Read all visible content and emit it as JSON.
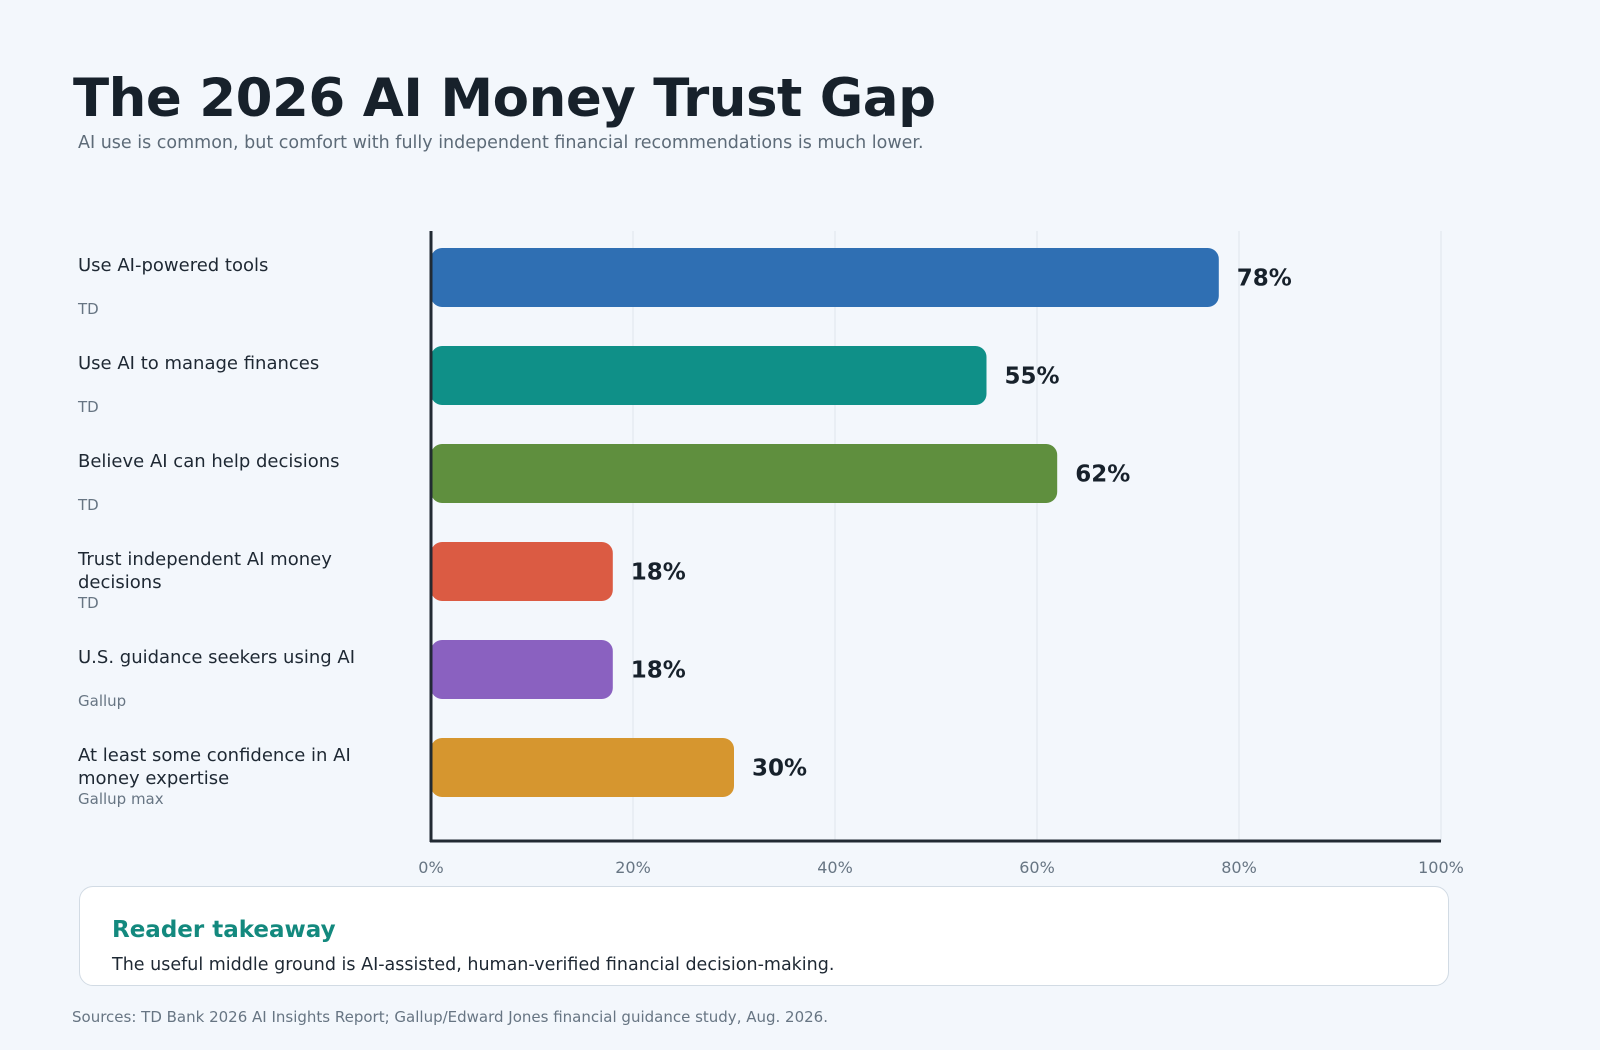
{
  "title": "The 2026 AI Money Trust Gap",
  "subtitle": "AI use is common, but comfort with fully independent financial recommendations is much lower.",
  "chart_data": {
    "type": "bar",
    "orientation": "horizontal",
    "categories": [
      "Use AI-powered tools",
      "Use AI to manage finances",
      "Believe AI can help decisions",
      "Trust independent AI money decisions",
      "U.S. guidance seekers using AI",
      "At least some confidence in AI money expertise"
    ],
    "sources": [
      "TD",
      "TD",
      "TD",
      "TD",
      "Gallup",
      "Gallup max"
    ],
    "values": [
      78,
      55,
      62,
      18,
      18,
      30
    ],
    "value_labels": [
      "78%",
      "55%",
      "62%",
      "18%",
      "18%",
      "30%"
    ],
    "colors": [
      "#2f6fb3",
      "#0f9088",
      "#5f8f3e",
      "#db5b43",
      "#8a61c0",
      "#d6962f"
    ],
    "xlim": [
      0,
      100
    ],
    "xticks": [
      0,
      20,
      40,
      60,
      80,
      100
    ],
    "xtick_labels": [
      "0%",
      "20%",
      "40%",
      "60%",
      "80%",
      "100%"
    ],
    "grid": true
  },
  "takeaway": {
    "title": "Reader takeaway",
    "text": "The useful middle ground is AI-assisted, human-verified financial decision-making."
  },
  "sources_note": "Sources: TD Bank 2026 AI Insights Report; Gallup/Edward Jones financial guidance study, Aug. 2026."
}
